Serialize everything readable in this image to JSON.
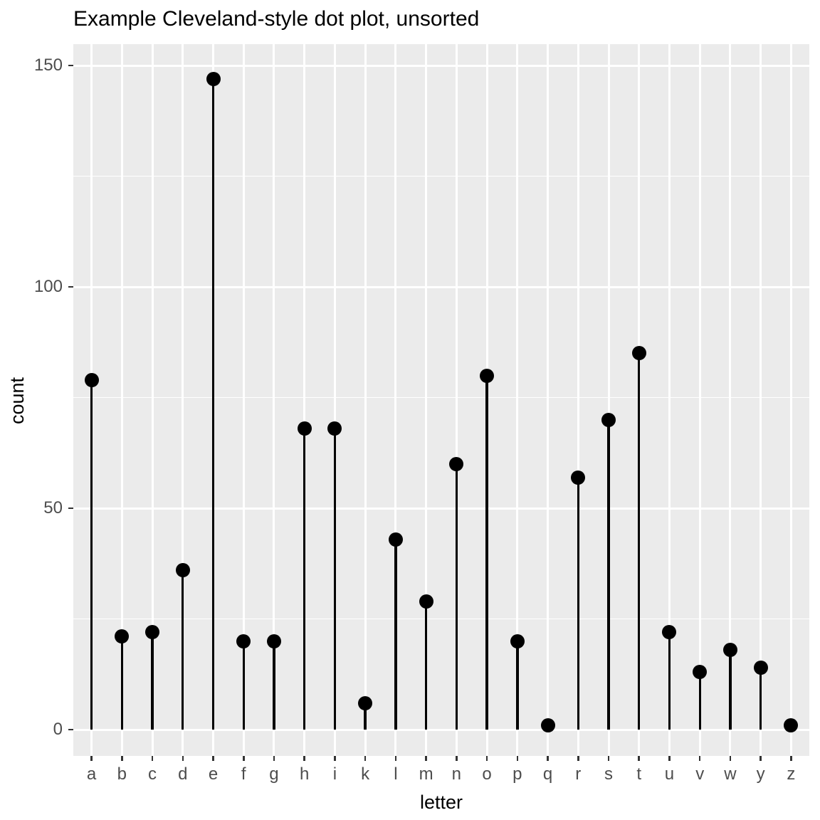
{
  "title": "Example Cleveland-style dot plot, unsorted",
  "chart_data": {
    "type": "scatter",
    "variant": "cleveland-dot-plot-lollipop",
    "title": "Example Cleveland-style dot plot, unsorted",
    "xlabel": "letter",
    "ylabel": "count",
    "categories": [
      "a",
      "b",
      "c",
      "d",
      "e",
      "f",
      "g",
      "h",
      "i",
      "k",
      "l",
      "m",
      "n",
      "o",
      "p",
      "q",
      "r",
      "s",
      "t",
      "u",
      "v",
      "w",
      "y",
      "z"
    ],
    "values": [
      79,
      21,
      22,
      36,
      147,
      20,
      20,
      68,
      68,
      6,
      43,
      29,
      60,
      80,
      20,
      1,
      57,
      70,
      85,
      22,
      13,
      18,
      14,
      1
    ],
    "y_major_ticks": [
      0,
      50,
      100,
      150
    ],
    "y_minor_ticks": [
      25,
      75,
      125
    ],
    "ylim": [
      -6,
      155
    ],
    "grid": "white major and minor horizontal lines, white vertical line per category, on grey panel",
    "legend": "none"
  },
  "colors": {
    "panel_background": "#EBEBEB",
    "gridline": "#FFFFFF",
    "point_and_stem": "#000000",
    "axis_tick_text": "#4D4D4D",
    "axis_tick_mark": "#333333",
    "title_text": "#000000"
  }
}
